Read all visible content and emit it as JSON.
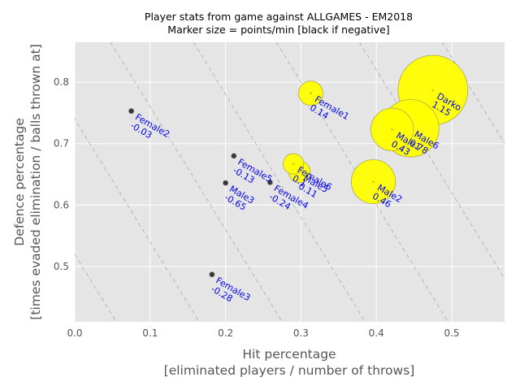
{
  "chart_data": {
    "type": "scatter",
    "title": "Player stats from game against ALLGAMES - EM2018",
    "subtitle": "Marker size = points/min [black if negative]",
    "xlabel": "Hit percentage",
    "xlabel2": "[eliminated players / number of throws]",
    "ylabel": "Defence percentage",
    "ylabel2": "[times evaded elimination / balls thrown at]",
    "xlim": [
      0.0,
      0.57
    ],
    "ylim": [
      0.41,
      0.865
    ],
    "xticks": [
      "0.0",
      "0.1",
      "0.2",
      "0.3",
      "0.4",
      "0.5"
    ],
    "yticks": [
      "0.5",
      "0.6",
      "0.7",
      "0.8"
    ],
    "grid": true,
    "colors": {
      "positive": "#ffff00",
      "negative": "#000000",
      "label": "#0000ee",
      "background": "#e5e5e5",
      "grid": "#ffffff"
    },
    "points": [
      {
        "name": "Darko",
        "value": "1.15",
        "x": 0.475,
        "y": 0.787,
        "size": 1.15
      },
      {
        "name": "Male6",
        "value": "0.78",
        "x": 0.445,
        "y": 0.725,
        "size": 0.78
      },
      {
        "name": "Male1",
        "value": "0.43",
        "x": 0.421,
        "y": 0.723,
        "size": 0.43
      },
      {
        "name": "Male2",
        "value": "0.46",
        "x": 0.396,
        "y": 0.638,
        "size": 0.46
      },
      {
        "name": "Female1",
        "value": "0.14",
        "x": 0.313,
        "y": 0.782,
        "size": 0.14
      },
      {
        "name": "Female6",
        "value": "0.1",
        "x": 0.29,
        "y": 0.667,
        "size": 0.1
      },
      {
        "name": "Male5",
        "value": "0.11",
        "x": 0.298,
        "y": 0.654,
        "size": 0.11
      },
      {
        "name": "Female2",
        "value": "-0.03",
        "x": 0.075,
        "y": 0.753,
        "size": -0.03
      },
      {
        "name": "Female5",
        "value": "-0.13",
        "x": 0.211,
        "y": 0.68,
        "size": -0.13
      },
      {
        "name": "Male3",
        "value": "-0.65",
        "x": 0.2,
        "y": 0.636,
        "size": -0.65
      },
      {
        "name": "Female4",
        "value": "-0.24",
        "x": 0.259,
        "y": 0.637,
        "size": -0.24
      },
      {
        "name": "Female3",
        "value": "-0.28",
        "x": 0.182,
        "y": 0.487,
        "size": -0.28
      }
    ],
    "iso_lines": [
      1.14,
      1.03,
      0.92,
      0.81,
      0.7,
      0.59,
      0.48,
      0.37,
      0.26
    ]
  }
}
